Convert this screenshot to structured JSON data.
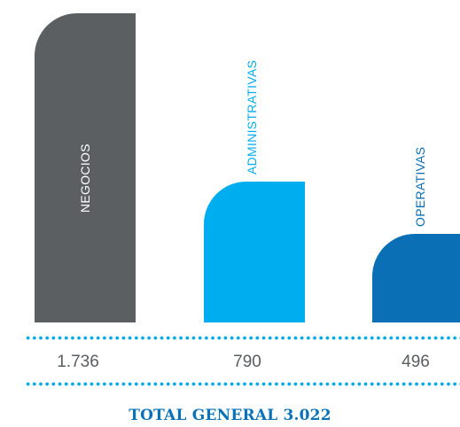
{
  "chart_data": {
    "type": "bar",
    "categories": [
      "NEGOCIOS",
      "ADMINISTRATIVAS",
      "OPERATIVAS"
    ],
    "values": [
      1736,
      790,
      496
    ],
    "value_labels": [
      "1.736",
      "790",
      "496"
    ],
    "colors": [
      "#5c5f62",
      "#00aeef",
      "#0b6fb6"
    ],
    "label_colors": [
      "#ffffff",
      "#00aeef",
      "#0b6fb6"
    ],
    "total_label": "TOTAL GENERAL 3.022",
    "total_color": "#0a72b8"
  }
}
